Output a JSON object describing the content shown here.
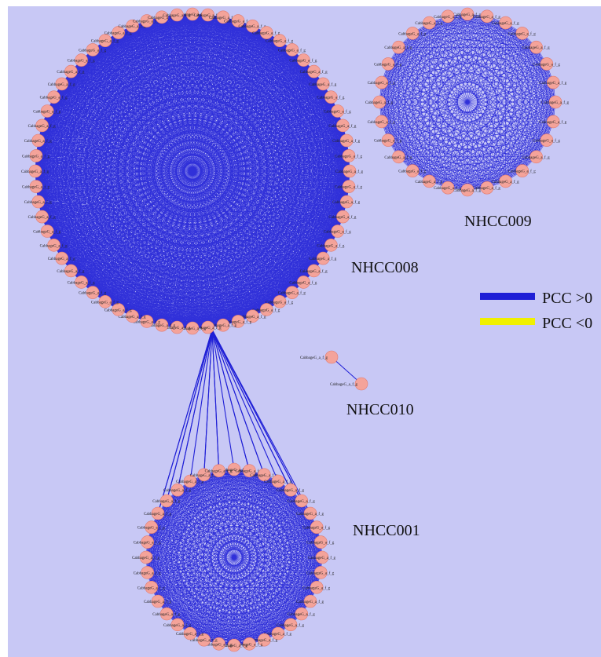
{
  "background_color": "#c8c8f5",
  "colors": {
    "edge_positive": "#1f1fd6",
    "edge_negative": "#f0f000",
    "node_fill": "#f4a39a",
    "node_stroke": "#e07a70"
  },
  "legend": {
    "positive_label": "PCC >0",
    "negative_label": "PCC <0"
  },
  "node_label_text": "CabbageG_a_f_g",
  "clusters": [
    {
      "id": "NHCC008",
      "label": "NHCC008",
      "nodes": 64
    },
    {
      "id": "NHCC009",
      "label": "NHCC009",
      "nodes": 28
    },
    {
      "id": "NHCC010",
      "label": "NHCC010",
      "nodes": 2
    },
    {
      "id": "NHCC001",
      "label": "NHCC001",
      "nodes": 36
    }
  ],
  "inter_cluster_edges": {
    "from": "NHCC008",
    "to": "NHCC001",
    "count": 22
  }
}
